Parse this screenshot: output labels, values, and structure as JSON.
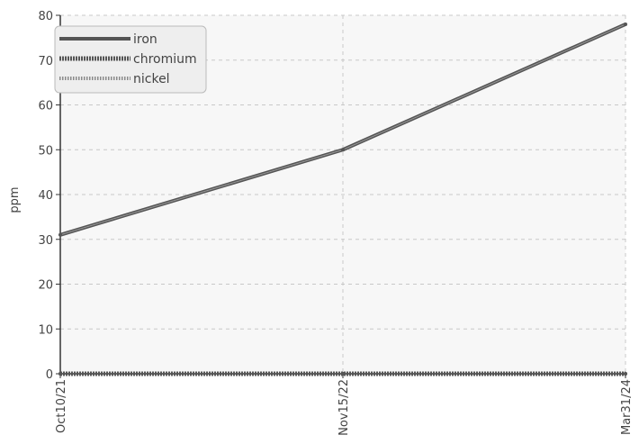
{
  "chart_data": {
    "type": "line",
    "title": "",
    "xlabel": "",
    "ylabel": "ppm",
    "categories": [
      "Oct10/21",
      "Nov15/22",
      "Mar31/24"
    ],
    "ylim": [
      0,
      80
    ],
    "yticks": [
      0,
      10,
      20,
      30,
      40,
      50,
      60,
      70,
      80
    ],
    "grid": true,
    "legend_position": "top-left",
    "series": [
      {
        "name": "iron",
        "values": [
          31,
          50,
          78
        ],
        "color": "#555555",
        "style": "solid"
      },
      {
        "name": "chromium",
        "values": [
          0,
          0,
          0
        ],
        "color": "#555555",
        "style": "dotted"
      },
      {
        "name": "nickel",
        "values": [
          0,
          0,
          0
        ],
        "color": "#777777",
        "style": "dashed-light"
      }
    ]
  }
}
